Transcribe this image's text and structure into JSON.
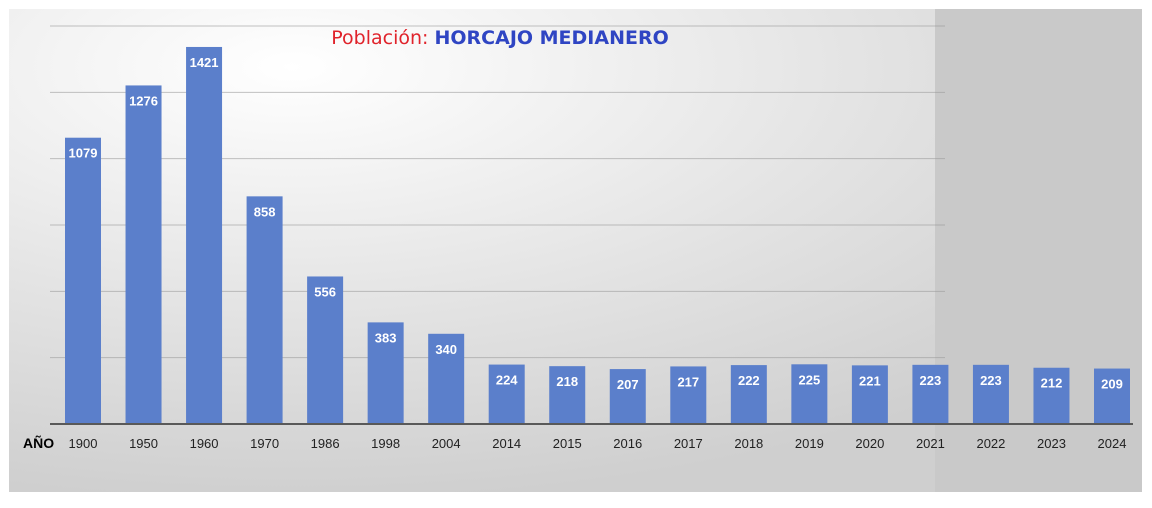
{
  "chart_data": {
    "type": "bar",
    "title_prefix": "Población:",
    "title_name": "HORCAJO MEDIANERO",
    "xlabel": "AÑO",
    "categories": [
      "1900",
      "1950",
      "1960",
      "1970",
      "1986",
      "1998",
      "2004",
      "2014",
      "2015",
      "2016",
      "2017",
      "2018",
      "2019",
      "2020",
      "2021",
      "2022",
      "2023",
      "2024"
    ],
    "values": [
      1079,
      1276,
      1421,
      858,
      556,
      383,
      340,
      224,
      218,
      207,
      217,
      222,
      225,
      221,
      223,
      223,
      212,
      209
    ],
    "ylim": [
      0,
      1500
    ],
    "grid": true,
    "bar_color": "#5b7fcb",
    "label_color": "#ffffff"
  }
}
